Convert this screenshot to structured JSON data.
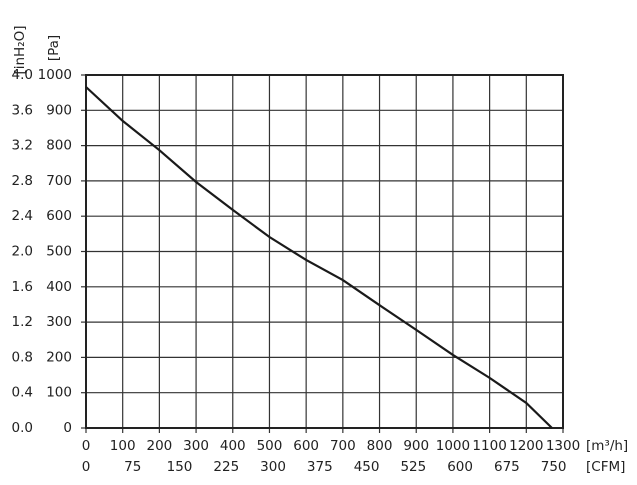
{
  "chart_data": {
    "type": "line",
    "y_label": "[Pa]",
    "y2_label": "[inH₂O]",
    "x_label": "[m³/h]",
    "x2_label": "[CFM]",
    "x": [
      0,
      100,
      200,
      300,
      400,
      500,
      600,
      700,
      800,
      900,
      1000,
      1100,
      1200,
      1270
    ],
    "values": [
      966,
      870,
      787,
      697,
      618,
      541,
      476,
      419,
      348,
      278,
      207,
      142,
      71,
      0
    ],
    "color": "#1a1a1a",
    "xlim": [
      0,
      1300
    ],
    "xticks": [
      0,
      100,
      200,
      300,
      400,
      500,
      600,
      700,
      800,
      900,
      1000,
      1100,
      1200,
      1300
    ],
    "x2lim": [
      0,
      765
    ],
    "x2ticks": [
      0,
      75,
      150,
      225,
      300,
      375,
      450,
      525,
      600,
      675,
      750
    ],
    "ylim": [
      0,
      1000
    ],
    "yticks": [
      0,
      100,
      200,
      300,
      400,
      500,
      600,
      700,
      800,
      900,
      1000
    ],
    "y2lim": [
      0,
      4
    ],
    "y2ticks": [
      {
        "value": 0,
        "label": "0.0"
      },
      {
        "value": 0.4,
        "label": "0.4"
      },
      {
        "value": 0.8,
        "label": "0.8"
      },
      {
        "value": 1.2,
        "label": "1.2"
      },
      {
        "value": 1.6,
        "label": "1.6"
      },
      {
        "value": 2,
        "label": "2.0"
      },
      {
        "value": 2.4,
        "label": "2.4"
      },
      {
        "value": 2.8,
        "label": "2.8"
      },
      {
        "value": 3.2,
        "label": "3.2"
      },
      {
        "value": 3.6,
        "label": "3.6"
      },
      {
        "value": 4,
        "label": "4.0"
      }
    ],
    "grid": true
  }
}
